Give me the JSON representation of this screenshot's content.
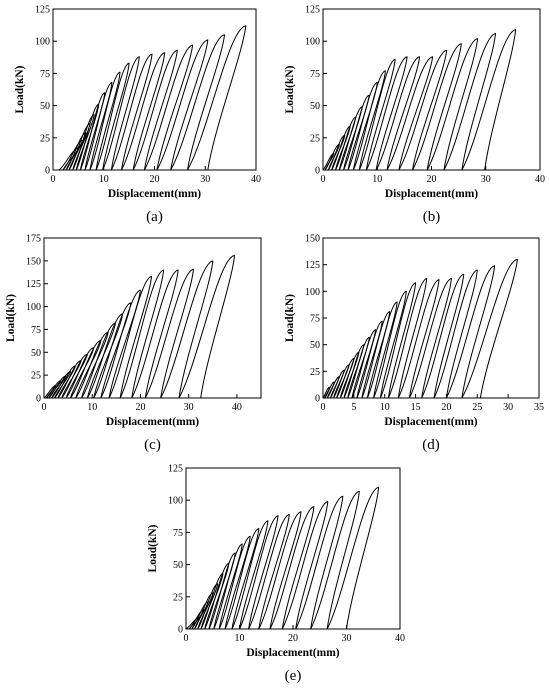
{
  "chart_data": [
    {
      "type": "line",
      "panel_label": "(a)",
      "xlabel": "Displacement(mm)",
      "ylabel": "Load(kN)",
      "xlim": [
        0,
        40
      ],
      "ylim": [
        0,
        125
      ],
      "xticks": [
        0,
        10,
        20,
        30,
        40
      ],
      "yticks": [
        0,
        25,
        50,
        75,
        100,
        125
      ],
      "grid": false,
      "legend": "none",
      "cycles": [
        {
          "peak_x": 5.0,
          "peak_y": 17,
          "residual_x": 2.0
        },
        {
          "peak_x": 5.8,
          "peak_y": 23,
          "residual_x": 2.6
        },
        {
          "peak_x": 6.5,
          "peak_y": 29,
          "residual_x": 3.2
        },
        {
          "peak_x": 7.3,
          "peak_y": 36,
          "residual_x": 3.9
        },
        {
          "peak_x": 8.1,
          "peak_y": 43,
          "residual_x": 4.6
        },
        {
          "peak_x": 9.0,
          "peak_y": 51,
          "residual_x": 5.4
        },
        {
          "peak_x": 10.2,
          "peak_y": 60,
          "residual_x": 6.3
        },
        {
          "peak_x": 11.6,
          "peak_y": 68,
          "residual_x": 7.3
        },
        {
          "peak_x": 13.2,
          "peak_y": 76,
          "residual_x": 8.5
        },
        {
          "peak_x": 15.0,
          "peak_y": 83,
          "residual_x": 9.8
        },
        {
          "peak_x": 17.0,
          "peak_y": 88,
          "residual_x": 11.5
        },
        {
          "peak_x": 19.5,
          "peak_y": 90,
          "residual_x": 13.5
        },
        {
          "peak_x": 22.0,
          "peak_y": 91,
          "residual_x": 15.8
        },
        {
          "peak_x": 24.5,
          "peak_y": 93,
          "residual_x": 18.0
        },
        {
          "peak_x": 27.5,
          "peak_y": 97,
          "residual_x": 20.5
        },
        {
          "peak_x": 30.5,
          "peak_y": 101,
          "residual_x": 23.2
        },
        {
          "peak_x": 33.8,
          "peak_y": 105,
          "residual_x": 26.5
        },
        {
          "peak_x": 38.0,
          "peak_y": 112,
          "residual_x": 30.5
        }
      ]
    },
    {
      "type": "line",
      "panel_label": "(b)",
      "xlabel": "Displacement(mm)",
      "ylabel": "Load(kN)",
      "xlim": [
        0,
        40
      ],
      "ylim": [
        0,
        125
      ],
      "xticks": [
        0,
        10,
        20,
        30,
        40
      ],
      "yticks": [
        0,
        25,
        50,
        75,
        100,
        125
      ],
      "grid": false,
      "legend": "none",
      "cycles": [
        {
          "peak_x": 2.0,
          "peak_y": 13,
          "residual_x": 0.4
        },
        {
          "peak_x": 3.0,
          "peak_y": 20,
          "residual_x": 1.0
        },
        {
          "peak_x": 4.0,
          "peak_y": 27,
          "residual_x": 1.6
        },
        {
          "peak_x": 5.0,
          "peak_y": 34,
          "residual_x": 2.3
        },
        {
          "peak_x": 6.0,
          "peak_y": 41,
          "residual_x": 3.0
        },
        {
          "peak_x": 7.2,
          "peak_y": 49,
          "residual_x": 3.8
        },
        {
          "peak_x": 8.5,
          "peak_y": 58,
          "residual_x": 4.6
        },
        {
          "peak_x": 10.0,
          "peak_y": 68,
          "residual_x": 5.6
        },
        {
          "peak_x": 11.5,
          "peak_y": 77,
          "residual_x": 6.7
        },
        {
          "peak_x": 13.3,
          "peak_y": 86,
          "residual_x": 8.0
        },
        {
          "peak_x": 15.5,
          "peak_y": 88,
          "residual_x": 9.8
        },
        {
          "peak_x": 17.8,
          "peak_y": 88,
          "residual_x": 11.8
        },
        {
          "peak_x": 20.2,
          "peak_y": 88,
          "residual_x": 14.0
        },
        {
          "peak_x": 22.8,
          "peak_y": 93,
          "residual_x": 16.5
        },
        {
          "peak_x": 25.5,
          "peak_y": 98,
          "residual_x": 19.2
        },
        {
          "peak_x": 28.5,
          "peak_y": 102,
          "residual_x": 22.3
        },
        {
          "peak_x": 31.8,
          "peak_y": 106,
          "residual_x": 25.6
        },
        {
          "peak_x": 35.5,
          "peak_y": 109,
          "residual_x": 29.8
        }
      ]
    },
    {
      "type": "line",
      "panel_label": "(c)",
      "xlabel": "Displacement(mm)",
      "ylabel": "Load(kN)",
      "xlim": [
        0,
        45
      ],
      "ylim": [
        0,
        175
      ],
      "xticks": [
        0,
        10,
        20,
        30,
        40
      ],
      "yticks": [
        0,
        25,
        50,
        75,
        100,
        125,
        150,
        175
      ],
      "grid": false,
      "legend": "none",
      "cycles": [
        {
          "peak_x": 2.5,
          "peak_y": 14,
          "residual_x": 0.5
        },
        {
          "peak_x": 3.5,
          "peak_y": 19,
          "residual_x": 1.0
        },
        {
          "peak_x": 4.5,
          "peak_y": 24,
          "residual_x": 1.6
        },
        {
          "peak_x": 5.5,
          "peak_y": 29,
          "residual_x": 2.2
        },
        {
          "peak_x": 6.5,
          "peak_y": 35,
          "residual_x": 2.9
        },
        {
          "peak_x": 7.7,
          "peak_y": 41,
          "residual_x": 3.7
        },
        {
          "peak_x": 9.0,
          "peak_y": 48,
          "residual_x": 4.6
        },
        {
          "peak_x": 10.3,
          "peak_y": 55,
          "residual_x": 5.5
        },
        {
          "peak_x": 11.8,
          "peak_y": 63,
          "residual_x": 6.6
        },
        {
          "peak_x": 13.3,
          "peak_y": 72,
          "residual_x": 7.8
        },
        {
          "peak_x": 14.8,
          "peak_y": 82,
          "residual_x": 9.0
        },
        {
          "peak_x": 16.3,
          "peak_y": 92,
          "residual_x": 10.3
        },
        {
          "peak_x": 18.0,
          "peak_y": 104,
          "residual_x": 11.8
        },
        {
          "peak_x": 20.0,
          "peak_y": 118,
          "residual_x": 13.5
        },
        {
          "peak_x": 22.3,
          "peak_y": 133,
          "residual_x": 15.8
        },
        {
          "peak_x": 24.8,
          "peak_y": 140,
          "residual_x": 18.2
        },
        {
          "peak_x": 27.8,
          "peak_y": 140,
          "residual_x": 21.0
        },
        {
          "peak_x": 31.0,
          "peak_y": 141,
          "residual_x": 24.2
        },
        {
          "peak_x": 35.0,
          "peak_y": 150,
          "residual_x": 28.0
        },
        {
          "peak_x": 39.5,
          "peak_y": 156,
          "residual_x": 32.5
        }
      ]
    },
    {
      "type": "line",
      "panel_label": "(d)",
      "xlabel": "Displacement(mm)",
      "ylabel": "Load(kN)",
      "xlim": [
        0,
        35
      ],
      "ylim": [
        0,
        150
      ],
      "xticks": [
        0,
        5,
        10,
        15,
        20,
        25,
        30,
        35
      ],
      "yticks": [
        0,
        25,
        50,
        75,
        100,
        125,
        150
      ],
      "grid": false,
      "legend": "none",
      "cycles": [
        {
          "peak_x": 1.0,
          "peak_y": 10,
          "residual_x": 0.3
        },
        {
          "peak_x": 1.8,
          "peak_y": 15,
          "residual_x": 0.7
        },
        {
          "peak_x": 2.6,
          "peak_y": 20,
          "residual_x": 1.2
        },
        {
          "peak_x": 3.4,
          "peak_y": 26,
          "residual_x": 1.7
        },
        {
          "peak_x": 4.2,
          "peak_y": 31,
          "residual_x": 2.2
        },
        {
          "peak_x": 5.0,
          "peak_y": 37,
          "residual_x": 2.8
        },
        {
          "peak_x": 5.8,
          "peak_y": 43,
          "residual_x": 3.4
        },
        {
          "peak_x": 6.6,
          "peak_y": 50,
          "residual_x": 4.0
        },
        {
          "peak_x": 7.5,
          "peak_y": 57,
          "residual_x": 4.7
        },
        {
          "peak_x": 8.5,
          "peak_y": 64,
          "residual_x": 5.5
        },
        {
          "peak_x": 9.6,
          "peak_y": 72,
          "residual_x": 6.3
        },
        {
          "peak_x": 10.8,
          "peak_y": 81,
          "residual_x": 7.2
        },
        {
          "peak_x": 12.0,
          "peak_y": 90,
          "residual_x": 8.2
        },
        {
          "peak_x": 13.5,
          "peak_y": 100,
          "residual_x": 9.3
        },
        {
          "peak_x": 15.0,
          "peak_y": 108,
          "residual_x": 10.6
        },
        {
          "peak_x": 16.8,
          "peak_y": 112,
          "residual_x": 12.2
        },
        {
          "peak_x": 18.8,
          "peak_y": 111,
          "residual_x": 14.0
        },
        {
          "peak_x": 20.8,
          "peak_y": 112,
          "residual_x": 16.0
        },
        {
          "peak_x": 22.8,
          "peak_y": 116,
          "residual_x": 18.0
        },
        {
          "peak_x": 25.0,
          "peak_y": 120,
          "residual_x": 20.0
        },
        {
          "peak_x": 27.8,
          "peak_y": 124,
          "residual_x": 22.5
        },
        {
          "peak_x": 31.5,
          "peak_y": 130,
          "residual_x": 25.5
        }
      ]
    },
    {
      "type": "line",
      "panel_label": "(e)",
      "xlabel": "Displacement(mm)",
      "ylabel": "Load(kN)",
      "xlim": [
        0,
        40
      ],
      "ylim": [
        0,
        125
      ],
      "xticks": [
        0,
        10,
        20,
        30,
        40
      ],
      "yticks": [
        0,
        25,
        50,
        75,
        100,
        125
      ],
      "grid": false,
      "legend": "none",
      "cycles": [
        {
          "peak_x": 2.5,
          "peak_y": 9,
          "residual_x": 0.6
        },
        {
          "peak_x": 3.3,
          "peak_y": 15,
          "residual_x": 1.1
        },
        {
          "peak_x": 4.1,
          "peak_y": 21,
          "residual_x": 1.6
        },
        {
          "peak_x": 5.0,
          "peak_y": 28,
          "residual_x": 2.2
        },
        {
          "peak_x": 5.9,
          "peak_y": 35,
          "residual_x": 2.8
        },
        {
          "peak_x": 6.9,
          "peak_y": 43,
          "residual_x": 3.5
        },
        {
          "peak_x": 8.0,
          "peak_y": 51,
          "residual_x": 4.3
        },
        {
          "peak_x": 9.2,
          "peak_y": 59,
          "residual_x": 5.2
        },
        {
          "peak_x": 10.5,
          "peak_y": 66,
          "residual_x": 6.2
        },
        {
          "peak_x": 12.0,
          "peak_y": 72,
          "residual_x": 7.3
        },
        {
          "peak_x": 13.6,
          "peak_y": 78,
          "residual_x": 8.6
        },
        {
          "peak_x": 15.3,
          "peak_y": 84,
          "residual_x": 10.0
        },
        {
          "peak_x": 17.2,
          "peak_y": 88,
          "residual_x": 11.7
        },
        {
          "peak_x": 19.3,
          "peak_y": 89,
          "residual_x": 13.6
        },
        {
          "peak_x": 21.5,
          "peak_y": 91,
          "residual_x": 15.7
        },
        {
          "peak_x": 23.9,
          "peak_y": 95,
          "residual_x": 18.0
        },
        {
          "peak_x": 26.5,
          "peak_y": 99,
          "residual_x": 20.5
        },
        {
          "peak_x": 29.3,
          "peak_y": 103,
          "residual_x": 23.3
        },
        {
          "peak_x": 32.4,
          "peak_y": 107,
          "residual_x": 26.4
        },
        {
          "peak_x": 36.0,
          "peak_y": 110,
          "residual_x": 30.0
        }
      ]
    }
  ]
}
